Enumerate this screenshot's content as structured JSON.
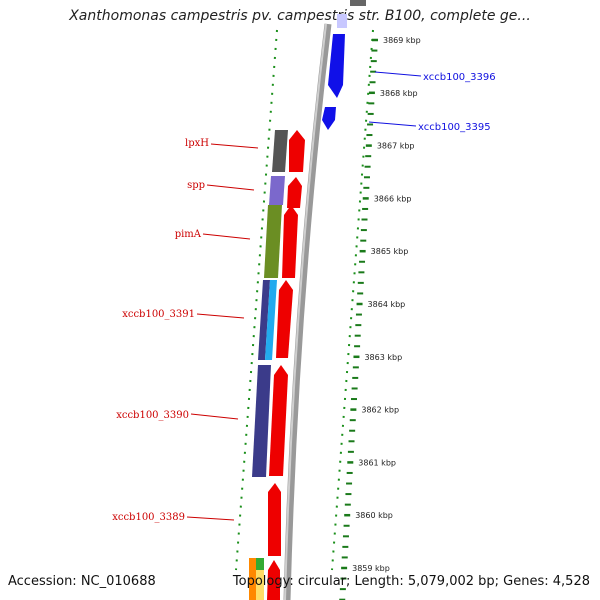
{
  "title": "Xanthomonas campestris pv. campestris str. B100, complete ge...",
  "footer": {
    "accession": "Accession: NC_010688",
    "topology": "Topology: circular; Length: 5,079,002 bp; Genes: 4,528"
  },
  "scale": {
    "ticks": [
      "3869 kbp",
      "3868 kbp",
      "3867 kbp",
      "3866 kbp",
      "3865 kbp",
      "3864 kbp",
      "3863 kbp",
      "3862 kbp",
      "3861 kbp",
      "3860 kbp",
      "3859 kbp"
    ]
  },
  "genes_forward": [
    {
      "name": "xccb100_3396",
      "color": "#1010e0"
    },
    {
      "name": "xccb100_3395",
      "color": "#1010e0"
    }
  ],
  "genes_reverse": [
    {
      "name": "lpxH",
      "color": "#cc0000"
    },
    {
      "name": "spp",
      "color": "#cc0000"
    },
    {
      "name": "pimA",
      "color": "#cc0000"
    },
    {
      "name": "xccb100_3391",
      "color": "#cc0000"
    },
    {
      "name": "xccb100_3390",
      "color": "#cc0000"
    },
    {
      "name": "xccb100_3389",
      "color": "#cc0000"
    }
  ],
  "colors": {
    "forward_cds": "#1010e8",
    "reverse_cds": "#ee0000",
    "backbone": "#888888",
    "gc_tick": "#0a7a0a",
    "lpxH_func": "#555555",
    "spp_func": "#7b68cc",
    "pimA_func": "#6b8e23",
    "x3391_func_a": "#3b3b8a",
    "x3391_func_b": "#22aaee",
    "x3390_func": "#3b3b8a"
  }
}
